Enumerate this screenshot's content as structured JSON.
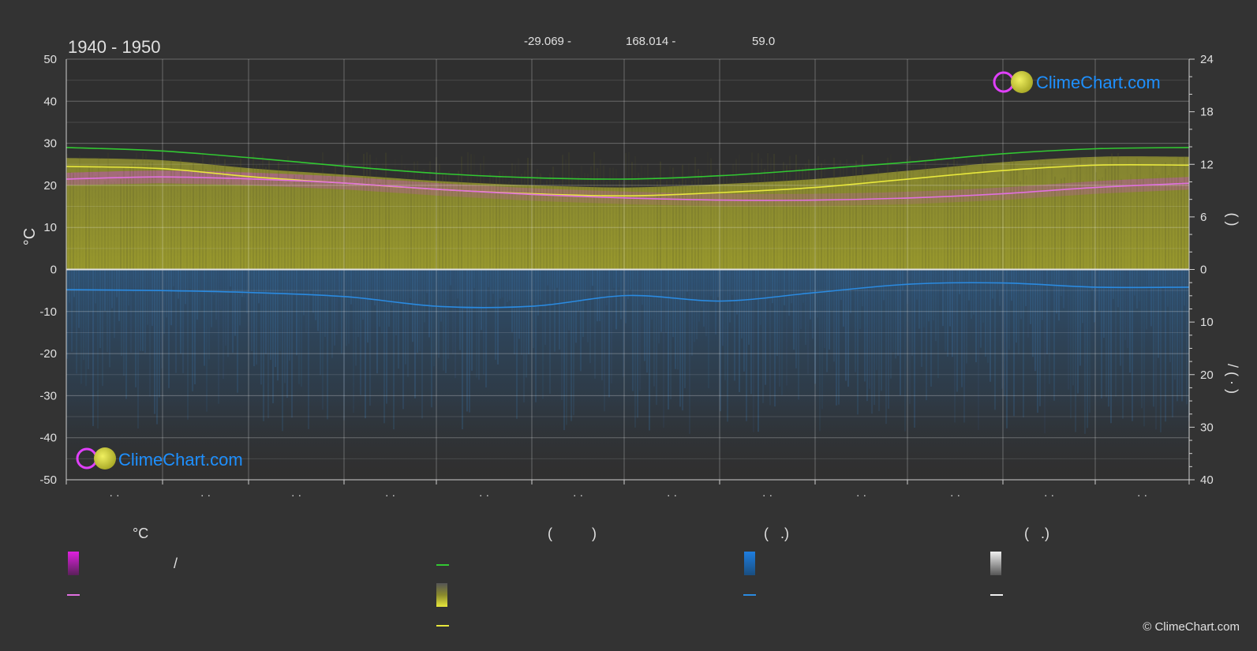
{
  "header": {
    "period": "1940 - 1950",
    "latitude": "-29.069 -",
    "longitude": "168.014 -",
    "elevation": "59.0"
  },
  "brand": {
    "logo_text": "ClimeChart.com",
    "copyright": "© ClimeChart.com",
    "colors": {
      "text": "#1e90ff",
      "ring": "#e040fb",
      "sun": "#d4d43c"
    }
  },
  "axes": {
    "left_label": "°C",
    "left_ticks": [
      "50",
      "40",
      "30",
      "20",
      "10",
      "0",
      "-10",
      "-20",
      "-30",
      "-40",
      "-50"
    ],
    "right_top_ticks": [
      "24",
      "18",
      "12",
      "6",
      "0"
    ],
    "right_bottom_ticks": [
      "10",
      "20",
      "30",
      "40"
    ],
    "right_upper_label": "(  )",
    "right_lower_label": "/  (  ·  )",
    "month_labels": [
      "· ·",
      "· ·",
      "· ·",
      "· ·",
      "· ·",
      "· ·",
      "· ·",
      "· ·",
      "· ·",
      "· ·",
      "· ·",
      "· ·"
    ]
  },
  "chart_data": {
    "type": "line",
    "x": [
      0,
      1,
      2,
      3,
      4,
      5,
      6,
      7,
      8,
      9,
      10,
      11,
      12
    ],
    "ylim": [
      -50,
      50
    ],
    "y2_top_range": [
      0,
      24
    ],
    "y2_bottom_range": [
      0,
      40
    ],
    "grid": true,
    "series": [
      {
        "values": [
          29,
          28.2,
          26.5,
          24.5,
          22.8,
          21.8,
          21.5,
          22.3,
          23.8,
          25.5,
          27.5,
          28.7,
          29
        ]
      },
      {
        "values": [
          24.5,
          24,
          22,
          20.5,
          19,
          18,
          17.5,
          18.3,
          19.5,
          21.5,
          23.5,
          24.8,
          24.8
        ]
      },
      {
        "values": [
          21.5,
          22,
          21.5,
          20.5,
          19,
          17.8,
          17,
          16.5,
          16.5,
          17,
          18,
          19.5,
          20.5
        ]
      },
      {
        "values": [
          -4.8,
          -5,
          -5.5,
          -6.5,
          -8.8,
          -8.7,
          -6.2,
          -7.5,
          -5.5,
          -3.5,
          -3.2,
          -4.2,
          -4.2
        ]
      }
    ],
    "colors": {
      "sunshine_fill": "#9c9c2c",
      "precip_fill": "#2e5a85",
      "daylight": "#32c832",
      "sunshine": "#e8e83c",
      "temp_mean": "#e070e0",
      "precip": "#2a8ae0"
    }
  },
  "legend": {
    "col1_header": "°C",
    "col1_row1": "/",
    "col2_header": "(          )",
    "col3_header": "(   .)",
    "col4_header": "(   .)",
    "colors": {
      "temp_swatch": "#e020e0",
      "temp_line": "#e070e0",
      "daylight_line": "#32c832",
      "sunshine_swatch": "#e8e83c",
      "sunshine_line": "#e8e83c",
      "precip_swatch": "#1e7ee0",
      "precip_line": "#2a8ae0",
      "snow_swatch": "#e0e0e0",
      "snow_line": "#f0f0f0"
    }
  }
}
